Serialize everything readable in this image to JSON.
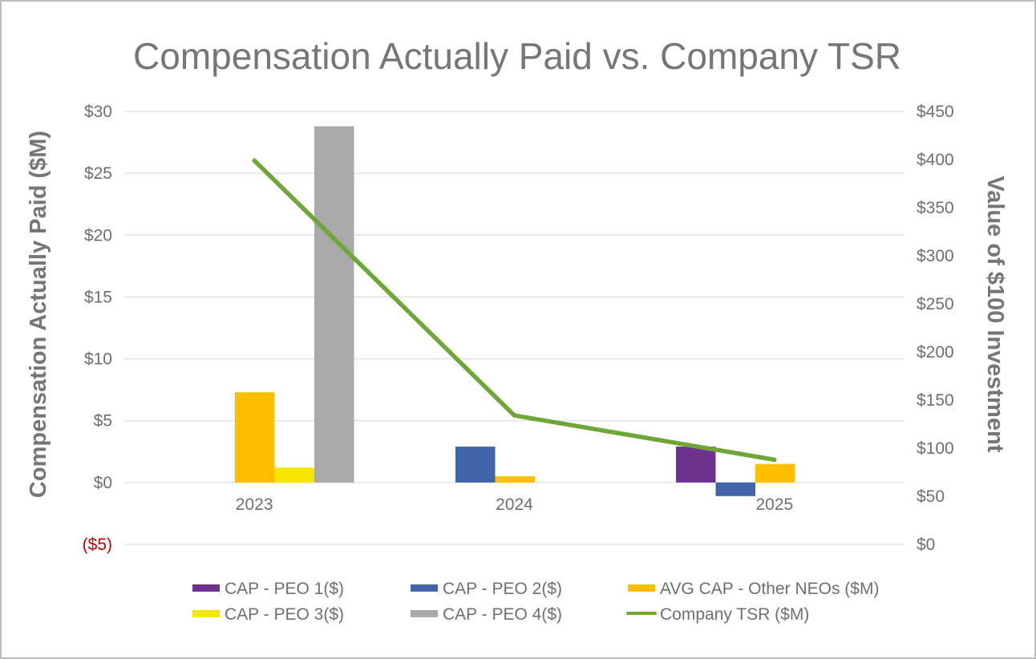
{
  "chart_data": {
    "type": "bar",
    "title": "Compensation Actually Paid vs. Company TSR",
    "categories": [
      "2023",
      "2024",
      "2025"
    ],
    "ylabel": "Compensation Actually Paid ($M)",
    "y2label": "Value of $100 Investment",
    "ylim": [
      -5,
      30
    ],
    "y2lim": [
      0,
      450
    ],
    "yticks": [
      {
        "value": 30,
        "label": "$30"
      },
      {
        "value": 25,
        "label": "$25"
      },
      {
        "value": 20,
        "label": "$20"
      },
      {
        "value": 15,
        "label": "$15"
      },
      {
        "value": 10,
        "label": "$10"
      },
      {
        "value": 5,
        "label": "$5"
      },
      {
        "value": 0,
        "label": "$0"
      },
      {
        "value": -5,
        "label": "($5)",
        "negative": true
      }
    ],
    "y2ticks": [
      {
        "value": 450,
        "label": "$450"
      },
      {
        "value": 400,
        "label": "$400"
      },
      {
        "value": 350,
        "label": "$350"
      },
      {
        "value": 300,
        "label": "$300"
      },
      {
        "value": 250,
        "label": "$250"
      },
      {
        "value": 200,
        "label": "$200"
      },
      {
        "value": 150,
        "label": "$150"
      },
      {
        "value": 100,
        "label": "$100"
      },
      {
        "value": 50,
        "label": "$50"
      },
      {
        "value": 0,
        "label": "$0"
      }
    ],
    "grid": true,
    "legend_position": "bottom",
    "series": [
      {
        "name": "CAP - PEO 1($)",
        "type": "bar",
        "axis": "left",
        "color": "#70308f",
        "values": [
          null,
          null,
          2.9
        ]
      },
      {
        "name": "CAP - PEO 2($)",
        "type": "bar",
        "axis": "left",
        "color": "#4166ac",
        "values": [
          null,
          2.9,
          -1.1
        ]
      },
      {
        "name": "AVG CAP - Other NEOs ($M)",
        "type": "bar",
        "axis": "left",
        "color": "#fbbf00",
        "values": [
          7.3,
          0.5,
          1.5
        ]
      },
      {
        "name": "CAP - PEO 3($)",
        "type": "bar",
        "axis": "left",
        "color": "#f6e500",
        "values": [
          1.2,
          null,
          null
        ]
      },
      {
        "name": "CAP - PEO 4($)",
        "type": "bar",
        "axis": "left",
        "color": "#aaa9aa",
        "values": [
          28.8,
          null,
          null
        ]
      },
      {
        "name": "Company TSR ($M)",
        "type": "line",
        "axis": "right",
        "color": "#6fa638",
        "values": [
          399,
          134,
          88
        ]
      }
    ],
    "legend": [
      {
        "name": "CAP - PEO 1($)",
        "color": "#70308f",
        "kind": "bar"
      },
      {
        "name": "CAP - PEO 2($)",
        "color": "#4166ac",
        "kind": "bar"
      },
      {
        "name": "AVG CAP - Other NEOs ($M)",
        "color": "#fbbf00",
        "kind": "bar"
      },
      {
        "name": "CAP - PEO 3($)",
        "color": "#f6e500",
        "kind": "bar"
      },
      {
        "name": "CAP - PEO 4($)",
        "color": "#aaa9aa",
        "kind": "bar"
      },
      {
        "name": "Company TSR ($M)",
        "color": "#6fa638",
        "kind": "line"
      }
    ]
  }
}
